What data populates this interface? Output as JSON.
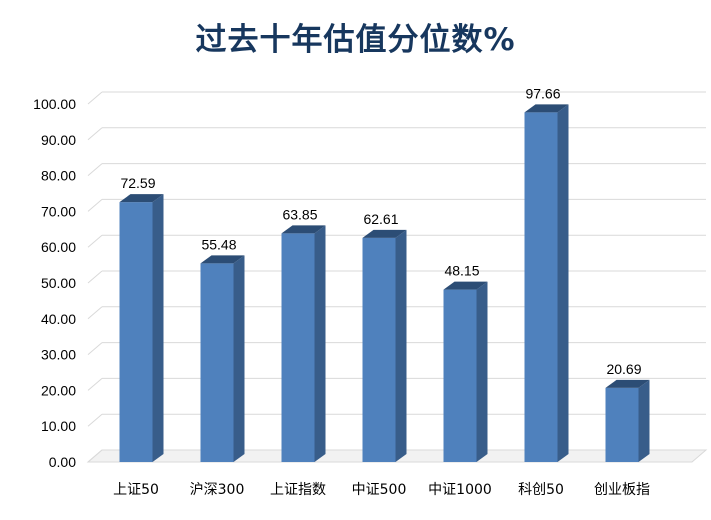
{
  "chart_data": {
    "type": "bar",
    "title": "过去十年估值分位数%",
    "categories": [
      "上证50",
      "沪深300",
      "上证指数",
      "中证500",
      "中证1000",
      "科创50",
      "创业板指"
    ],
    "values": [
      72.59,
      55.48,
      63.85,
      62.61,
      48.15,
      97.66,
      20.69
    ],
    "value_labels": [
      "72.59",
      "55.48",
      "63.85",
      "62.61",
      "48.15",
      "97.66",
      "20.69"
    ],
    "ylim": [
      0,
      100
    ],
    "yticks": [
      "0.00",
      "10.00",
      "20.00",
      "30.00",
      "40.00",
      "50.00",
      "60.00",
      "70.00",
      "80.00",
      "90.00",
      "100.00"
    ],
    "xlabel": "",
    "ylabel": "",
    "grid": true,
    "legend": "none",
    "colors": {
      "bar_front": "#4f81bd",
      "bar_side": "#385d8a",
      "bar_top": "#2c4d75",
      "title": "#17375e",
      "grid": "#d9d9d9"
    }
  }
}
